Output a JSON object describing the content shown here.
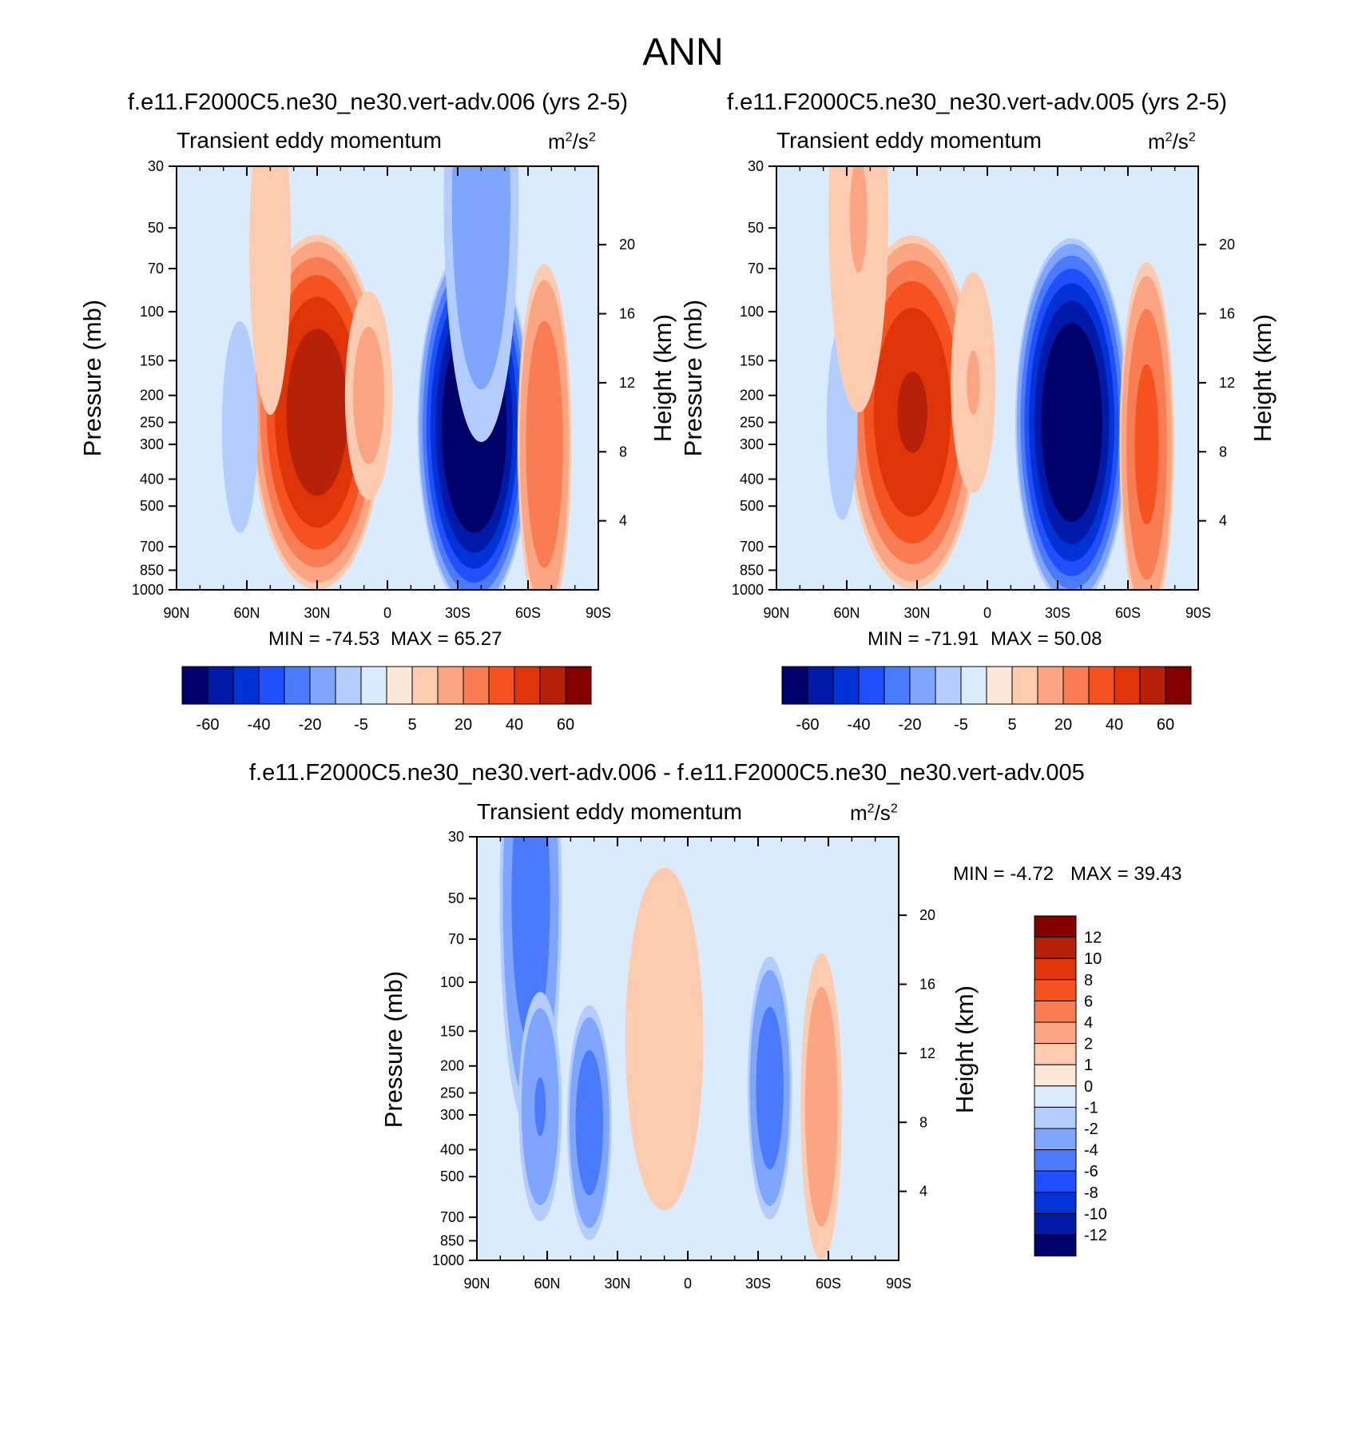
{
  "figure_title": "ANN",
  "panels": [
    {
      "title": "f.e11.F2000C5.ne30_ne30.vert-adv.006 (yrs 2-5)",
      "subtitle": "Transient eddy momentum",
      "units_base": "m",
      "units_exp1": "2",
      "units_mid": "/s",
      "units_exp2": "2",
      "min_label": "MIN = -74.53",
      "max_label": "MAX =  65.27",
      "left_axis_label": "Pressure (mb)",
      "right_axis_label": "Height (km)"
    },
    {
      "title": "f.e11.F2000C5.ne30_ne30.vert-adv.005 (yrs 2-5)",
      "subtitle": "Transient eddy momentum",
      "units_base": "m",
      "units_exp1": "2",
      "units_mid": "/s",
      "units_exp2": "2",
      "min_label": "MIN = -71.91",
      "max_label": "MAX =  50.08",
      "left_axis_label": "Pressure (mb)",
      "right_axis_label": "Height (km)"
    },
    {
      "title": "f.e11.F2000C5.ne30_ne30.vert-adv.006 - f.e11.F2000C5.ne30_ne30.vert-adv.005",
      "subtitle": "Transient eddy momentum",
      "units_base": "m",
      "units_exp1": "2",
      "units_mid": "/s",
      "units_exp2": "2",
      "min_label": "MIN =  -4.72",
      "max_label": "MAX =  39.43",
      "left_axis_label": "Pressure (mb)",
      "right_axis_label": "Height (km)"
    }
  ],
  "chart_data": [
    {
      "type": "heatmap",
      "title": "f.e11.F2000C5.ne30_ne30.vert-adv.006 (yrs 2-5)",
      "variable": "Transient eddy momentum",
      "units": "m2/s2",
      "x_ticks": [
        "90N",
        "60N",
        "30N",
        "0",
        "30S",
        "60S",
        "90S"
      ],
      "x_range_deg": [
        90,
        -90
      ],
      "y_ticks": [
        30,
        50,
        70,
        100,
        150,
        200,
        250,
        300,
        400,
        500,
        700,
        850,
        1000
      ],
      "y_range_mb": [
        30,
        1000
      ],
      "y2_ticks_km": [
        4,
        8,
        12,
        16,
        20
      ],
      "min": -74.53,
      "max": 65.27,
      "features": [
        {
          "lat": 30,
          "p": 230,
          "value": 55,
          "wlat": 14,
          "wlogp": 0.36
        },
        {
          "lat": 8,
          "p": 200,
          "value": 12,
          "wlat": 6,
          "wlogp": 0.25
        },
        {
          "lat": -37,
          "p": 260,
          "value": -74,
          "wlat": 12,
          "wlogp": 0.37
        },
        {
          "lat": 63,
          "p": 260,
          "value": -9,
          "wlat": 5,
          "wlogp": 0.28
        },
        {
          "lat": -67,
          "p": 300,
          "value": 28,
          "wlat": 6,
          "wlogp": 0.38
        },
        {
          "lat": 50,
          "p": 60,
          "value": 6,
          "wlat": 8,
          "wlogp": 0.6
        },
        {
          "lat": -40,
          "p": 40,
          "value": -15,
          "wlat": 9,
          "wlogp": 0.55
        }
      ],
      "colorbar": {
        "labels": [
          "-60",
          "-40",
          "-20",
          "-5",
          "5",
          "20",
          "40",
          "60"
        ],
        "orientation": "horizontal"
      }
    },
    {
      "type": "heatmap",
      "title": "f.e11.F2000C5.ne30_ne30.vert-adv.005 (yrs 2-5)",
      "variable": "Transient eddy momentum",
      "units": "m2/s2",
      "x_ticks": [
        "90N",
        "60N",
        "30N",
        "0",
        "30S",
        "60S",
        "90S"
      ],
      "x_range_deg": [
        90,
        -90
      ],
      "y_ticks": [
        30,
        50,
        70,
        100,
        150,
        200,
        250,
        300,
        400,
        500,
        700,
        850,
        1000
      ],
      "y_range_mb": [
        30,
        1000
      ],
      "y2_ticks_km": [
        4,
        8,
        12,
        16,
        20
      ],
      "min": -71.91,
      "max": 50.08,
      "features": [
        {
          "lat": 32,
          "p": 230,
          "value": 50,
          "wlat": 14,
          "wlogp": 0.36
        },
        {
          "lat": -36,
          "p": 250,
          "value": -71,
          "wlat": 12,
          "wlogp": 0.37
        },
        {
          "lat": 62,
          "p": 250,
          "value": -7,
          "wlat": 5,
          "wlogp": 0.3
        },
        {
          "lat": -68,
          "p": 300,
          "value": 32,
          "wlat": 6,
          "wlogp": 0.38
        },
        {
          "lat": 6,
          "p": 180,
          "value": 10,
          "wlat": 6,
          "wlogp": 0.28
        },
        {
          "lat": 55,
          "p": 45,
          "value": 10,
          "wlat": 8,
          "wlogp": 0.5
        }
      ],
      "colorbar": {
        "labels": [
          "-60",
          "-40",
          "-20",
          "-5",
          "5",
          "20",
          "40",
          "60"
        ],
        "orientation": "horizontal"
      }
    },
    {
      "type": "heatmap",
      "title": "f.e11.F2000C5.ne30_ne30.vert-adv.006 - f.e11.F2000C5.ne30_ne30.vert-adv.005",
      "variable": "Transient eddy momentum",
      "units": "m2/s2",
      "x_ticks": [
        "90N",
        "60N",
        "30N",
        "0",
        "30S",
        "60S",
        "90S"
      ],
      "x_range_deg": [
        90,
        -90
      ],
      "y_ticks": [
        30,
        50,
        70,
        100,
        150,
        200,
        250,
        300,
        400,
        500,
        700,
        850,
        1000
      ],
      "y_range_mb": [
        30,
        1000
      ],
      "y2_ticks_km": [
        4,
        8,
        12,
        16,
        20
      ],
      "min": -4.72,
      "max": 39.43,
      "features": [
        {
          "lat": 67,
          "p": 50,
          "value": -5,
          "wlat": 7,
          "wlogp": 0.5
        },
        {
          "lat": 63,
          "p": 280,
          "value": -4,
          "wlat": 5,
          "wlogp": 0.25
        },
        {
          "lat": 42,
          "p": 320,
          "value": -5,
          "wlat": 5,
          "wlogp": 0.25
        },
        {
          "lat": -35,
          "p": 240,
          "value": -5,
          "wlat": 5,
          "wlogp": 0.28
        },
        {
          "lat": -57,
          "p": 280,
          "value": 3,
          "wlat": 5,
          "wlogp": 0.35
        },
        {
          "lat": 10,
          "p": 160,
          "value": 1.5,
          "wlat": 12,
          "wlogp": 0.5
        }
      ],
      "colorbar": {
        "labels": [
          "12",
          "10",
          "8",
          "6",
          "4",
          "2",
          "1",
          "0",
          "-1",
          "-2",
          "-4",
          "-6",
          "-8",
          "-10",
          "-12"
        ],
        "orientation": "vertical"
      }
    }
  ],
  "colorbar_colors": [
    "#00006b",
    "#0019a8",
    "#0033d6",
    "#1f4fff",
    "#4a7bff",
    "#7ea5ff",
    "#b3cdff",
    "#d9ebfd",
    "#fde7d6",
    "#fdcbb0",
    "#fba582",
    "#f97c52",
    "#f5521f",
    "#de3407",
    "#b82109",
    "#840000"
  ],
  "diff_colorbar_colors": [
    "#840000",
    "#b82109",
    "#de3407",
    "#f5521f",
    "#f97c52",
    "#fba582",
    "#fdcbb0",
    "#fde7d6",
    "#d9ebfd",
    "#b3cdff",
    "#7ea5ff",
    "#4a7bff",
    "#1f4fff",
    "#0033d6",
    "#0019a8",
    "#00006b"
  ]
}
